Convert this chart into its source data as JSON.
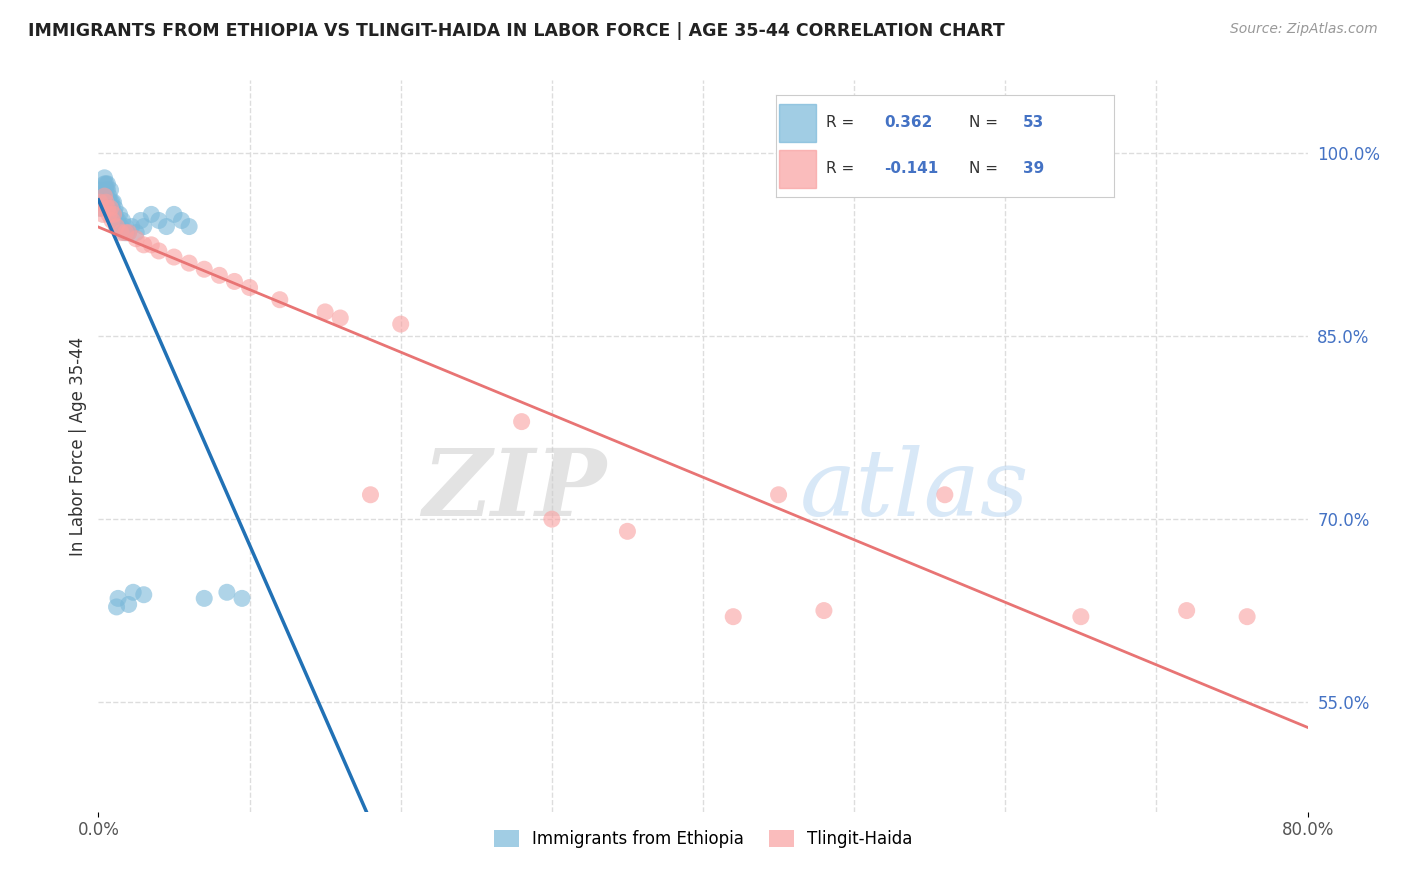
{
  "title": "IMMIGRANTS FROM ETHIOPIA VS TLINGIT-HAIDA IN LABOR FORCE | AGE 35-44 CORRELATION CHART",
  "source_text": "Source: ZipAtlas.com",
  "ylabel": "In Labor Force | Age 35-44",
  "xlim": [
    0.0,
    0.8
  ],
  "ylim": [
    0.46,
    1.06
  ],
  "yticks_right": [
    0.55,
    0.7,
    0.85,
    1.0
  ],
  "yticklabels_right": [
    "55.0%",
    "70.0%",
    "85.0%",
    "100.0%"
  ],
  "grid_yticks": [
    0.55,
    0.7,
    0.85,
    1.0
  ],
  "grid_color": "#dddddd",
  "background_color": "#ffffff",
  "blue_color": "#7ab8d9",
  "pink_color": "#f9a0a0",
  "blue_line_color": "#2171b5",
  "pink_line_color": "#e87474",
  "R_blue": 0.362,
  "N_blue": 53,
  "R_pink": -0.141,
  "N_pink": 39,
  "legend_entries": [
    "Immigrants from Ethiopia",
    "Tlingit-Haida"
  ],
  "watermark_zip": "ZIP",
  "watermark_atlas": "atlas",
  "blue_scatter_x": [
    0.001,
    0.002,
    0.003,
    0.003,
    0.004,
    0.004,
    0.004,
    0.005,
    0.005,
    0.005,
    0.006,
    0.006,
    0.006,
    0.007,
    0.007,
    0.007,
    0.008,
    0.008,
    0.009,
    0.009,
    0.01,
    0.01,
    0.011,
    0.011,
    0.012,
    0.012,
    0.013,
    0.013,
    0.014,
    0.015,
    0.016,
    0.017,
    0.018,
    0.019,
    0.02,
    0.022,
    0.025,
    0.028,
    0.03,
    0.035,
    0.04,
    0.045,
    0.05,
    0.055,
    0.06,
    0.07,
    0.085,
    0.095,
    0.012,
    0.013,
    0.02,
    0.023,
    0.03
  ],
  "blue_scatter_y": [
    0.955,
    0.97,
    0.96,
    0.965,
    0.965,
    0.975,
    0.98,
    0.97,
    0.975,
    0.965,
    0.96,
    0.97,
    0.975,
    0.955,
    0.96,
    0.965,
    0.96,
    0.97,
    0.955,
    0.96,
    0.95,
    0.96,
    0.95,
    0.955,
    0.94,
    0.945,
    0.94,
    0.945,
    0.95,
    0.94,
    0.945,
    0.935,
    0.94,
    0.935,
    0.935,
    0.94,
    0.935,
    0.945,
    0.94,
    0.95,
    0.945,
    0.94,
    0.95,
    0.945,
    0.94,
    0.635,
    0.64,
    0.635,
    0.628,
    0.635,
    0.63,
    0.64,
    0.638
  ],
  "pink_scatter_x": [
    0.001,
    0.002,
    0.003,
    0.004,
    0.005,
    0.006,
    0.007,
    0.008,
    0.009,
    0.01,
    0.012,
    0.015,
    0.018,
    0.02,
    0.025,
    0.03,
    0.035,
    0.04,
    0.05,
    0.06,
    0.07,
    0.08,
    0.09,
    0.1,
    0.12,
    0.15,
    0.16,
    0.18,
    0.2,
    0.28,
    0.3,
    0.35,
    0.42,
    0.45,
    0.48,
    0.56,
    0.65,
    0.72,
    0.76
  ],
  "pink_scatter_y": [
    0.96,
    0.955,
    0.95,
    0.965,
    0.96,
    0.955,
    0.95,
    0.955,
    0.945,
    0.95,
    0.94,
    0.935,
    0.935,
    0.935,
    0.93,
    0.925,
    0.925,
    0.92,
    0.915,
    0.91,
    0.905,
    0.9,
    0.895,
    0.89,
    0.88,
    0.87,
    0.865,
    0.72,
    0.86,
    0.78,
    0.7,
    0.69,
    0.62,
    0.72,
    0.625,
    0.72,
    0.62,
    0.625,
    0.62
  ]
}
